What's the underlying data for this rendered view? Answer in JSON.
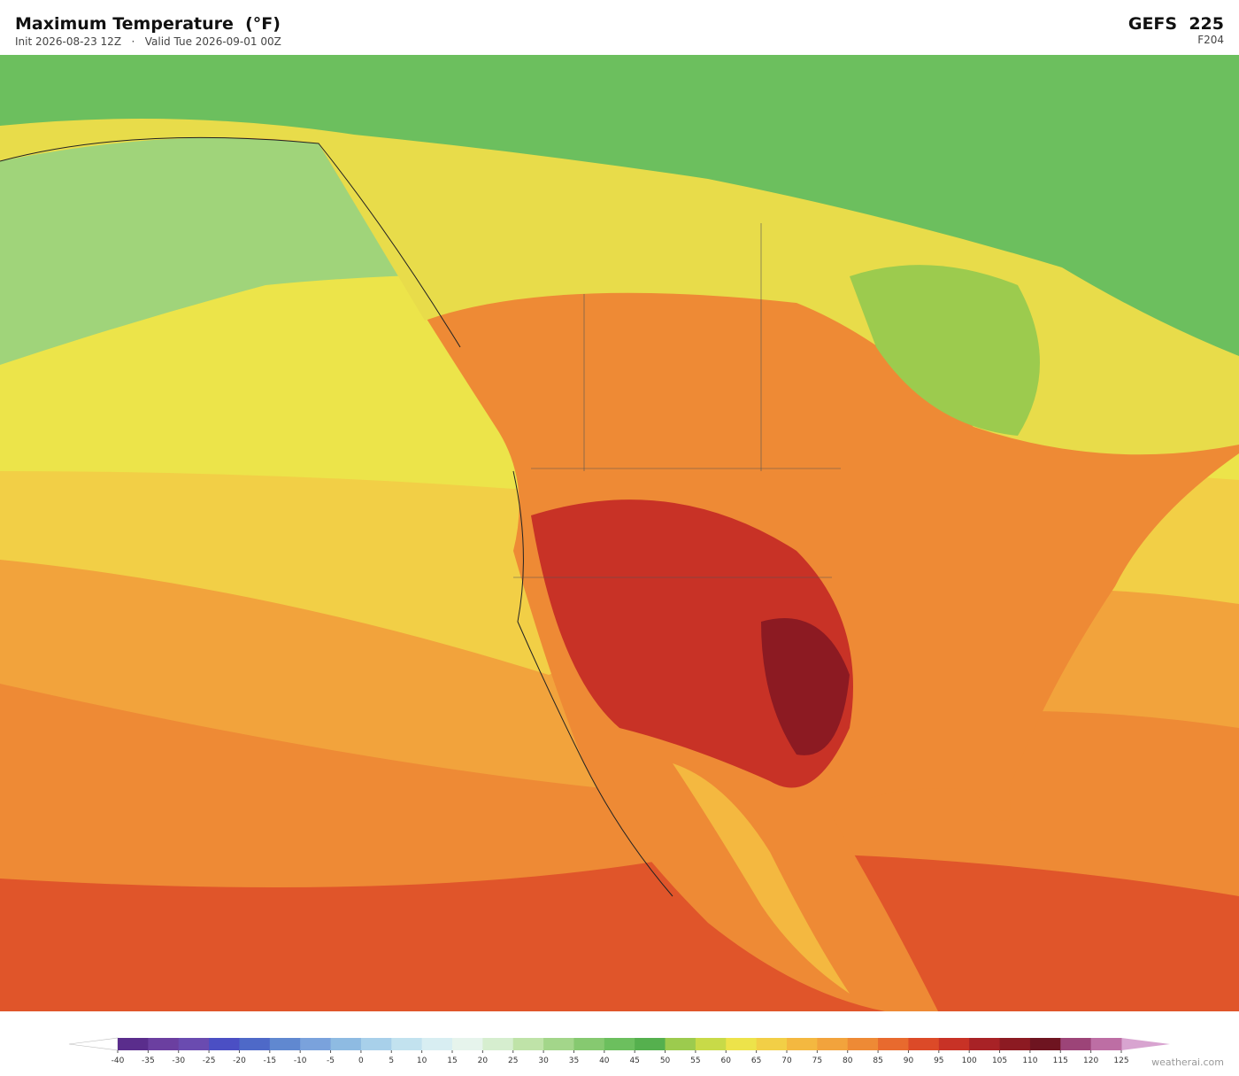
{
  "header": {
    "title": "Maximum Temperature  (°F)",
    "subtitle": "Init 2026-08-23 12Z   ·   Valid Tue 2026-09-01 00Z",
    "model": "GEFS  225",
    "forecast_hour": "F204"
  },
  "colorbar": {
    "ticks": [
      -40,
      -35,
      -30,
      -25,
      -20,
      -15,
      -10,
      -5,
      0,
      5,
      10,
      15,
      20,
      25,
      30,
      35,
      40,
      45,
      50,
      55,
      60,
      65,
      70,
      75,
      80,
      85,
      90,
      95,
      100,
      105,
      110,
      115,
      120,
      125
    ],
    "colors": [
      "#5a2d8c",
      "#6b3fa0",
      "#6a4bb0",
      "#4b4fc4",
      "#4e69c8",
      "#6088d0",
      "#7aa2dc",
      "#8ebbe2",
      "#a8d0ea",
      "#c2e2ef",
      "#d8eef2",
      "#e6f4ec",
      "#d6eecf",
      "#bfe3a8",
      "#a3d68a",
      "#86c970",
      "#6cbf5e",
      "#55b04e",
      "#9ccb4e",
      "#c8da48",
      "#ede34a",
      "#f2cf46",
      "#f4b840",
      "#f2a33c",
      "#ee8a35",
      "#e86a2e",
      "#dc4a28",
      "#c83226",
      "#a82226",
      "#8c1a22",
      "#6e1420",
      "#9c4478",
      "#bd6ea4"
    ],
    "under_color": "#ffffff",
    "over_color": "#d8a4d0"
  },
  "footer": {
    "credit": "weatherai.com"
  }
}
